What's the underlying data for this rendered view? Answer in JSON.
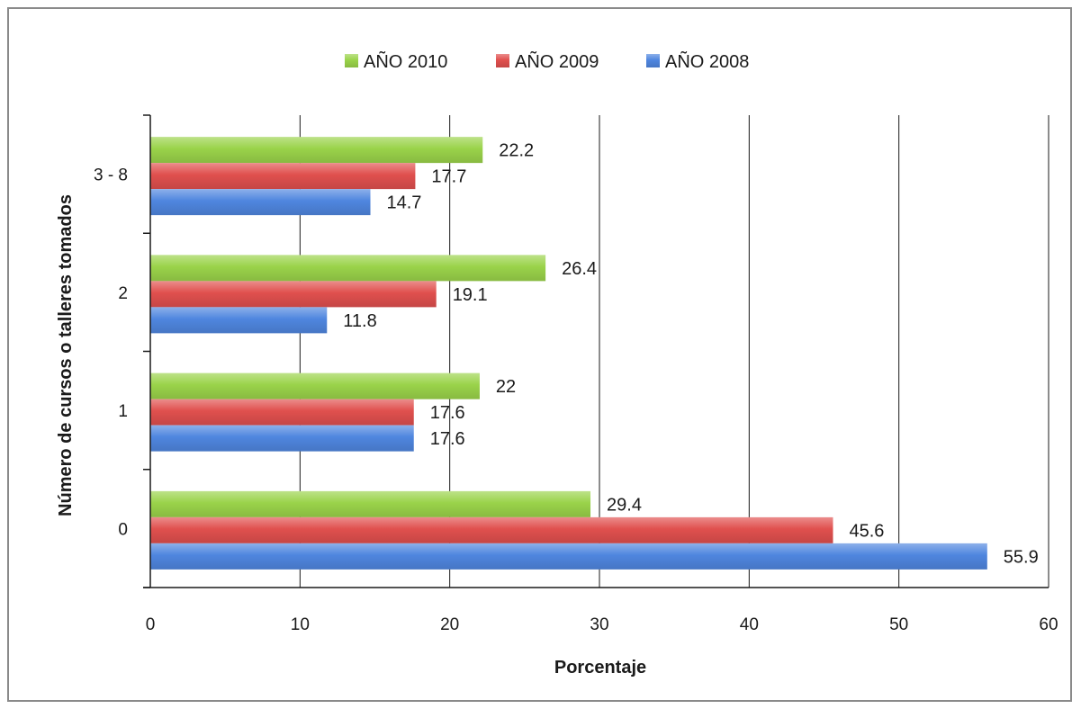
{
  "chart_data": {
    "type": "bar",
    "orientation": "horizontal",
    "categories": [
      "0",
      "1",
      "2",
      "3 - 8"
    ],
    "series": [
      {
        "name": "AÑO 2010",
        "values": [
          29.4,
          22,
          26.4,
          22.2
        ],
        "labels": [
          "29.4",
          "22",
          "26.4",
          "22.2"
        ],
        "color": "#9ad34a"
      },
      {
        "name": "AÑO 2009",
        "values": [
          45.6,
          17.6,
          19.1,
          17.7
        ],
        "labels": [
          "45.6",
          "17.6",
          "19.1",
          "17.7"
        ],
        "color": "#e0504e"
      },
      {
        "name": "AÑO 2008",
        "values": [
          55.9,
          17.6,
          11.8,
          14.7
        ],
        "labels": [
          "55.9",
          "17.6",
          "11.8",
          "14.7"
        ],
        "color": "#4f86df"
      }
    ],
    "title": "",
    "xlabel": "Porcentaje",
    "ylabel": "Número de cursos o talleres tomados",
    "xlim": [
      0,
      60
    ],
    "xticks": [
      "0",
      "10",
      "20",
      "30",
      "40",
      "50",
      "60"
    ],
    "grid": "vertical",
    "legend_position": "top"
  }
}
